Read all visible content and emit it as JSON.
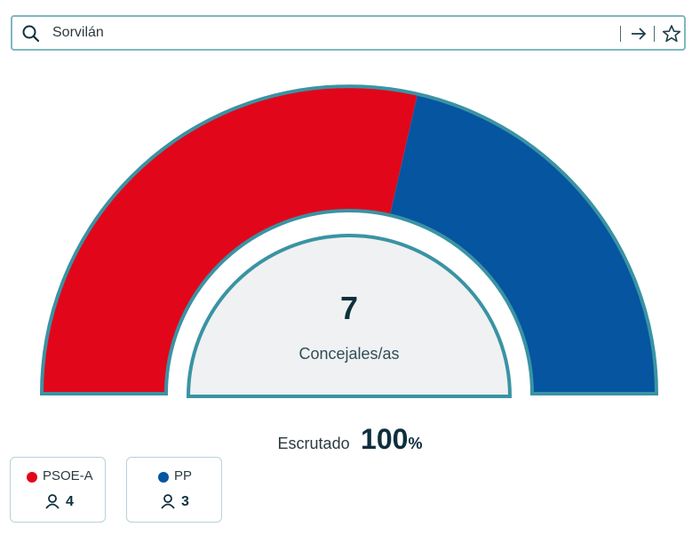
{
  "search": {
    "value": "Sorvilán"
  },
  "center": {
    "total": "7",
    "label": "Concejales/as"
  },
  "scrutiny": {
    "label": "Escrutado",
    "value": "100",
    "unit": "%"
  },
  "colors": {
    "border": "#3a93a3",
    "inner_fill": "#f0f1f2"
  },
  "chart_data": {
    "type": "pie",
    "subtype": "hemicycle",
    "total_seats": 7,
    "series": [
      {
        "name": "PSOE-A",
        "value": 4,
        "color": "#e2061a"
      },
      {
        "name": "PP",
        "value": 3,
        "color": "#0555a0"
      }
    ]
  },
  "parties": [
    {
      "name": "PSOE-A",
      "seats": "4",
      "color": "#e2061a"
    },
    {
      "name": "PP",
      "seats": "3",
      "color": "#0555a0"
    }
  ]
}
